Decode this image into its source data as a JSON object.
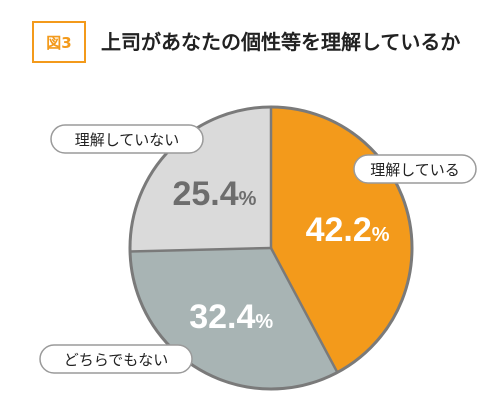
{
  "header": {
    "figure_label": "図3",
    "title": "上司があなたの個性等を理解しているか"
  },
  "colors": {
    "accent": "#f39a1b",
    "slice_understands": "#f39a1b",
    "slice_neither": "#a8b4b4",
    "slice_not": "#dadada",
    "outline": "#7a7a7a",
    "label_understands": "#ffffff",
    "label_neither": "#ffffff",
    "label_not": "#6d6d6d"
  },
  "chart_data": {
    "type": "pie",
    "start": "12 o'clock",
    "direction": "clockwise",
    "slices": [
      {
        "category": "理解している",
        "value": 42.2,
        "value_text": "42.2",
        "unit": "%"
      },
      {
        "category": "どちらでもない",
        "value": 32.4,
        "value_text": "32.4",
        "unit": "%"
      },
      {
        "category": "理解していない",
        "value": 25.4,
        "value_text": "25.4",
        "unit": "%"
      }
    ]
  }
}
